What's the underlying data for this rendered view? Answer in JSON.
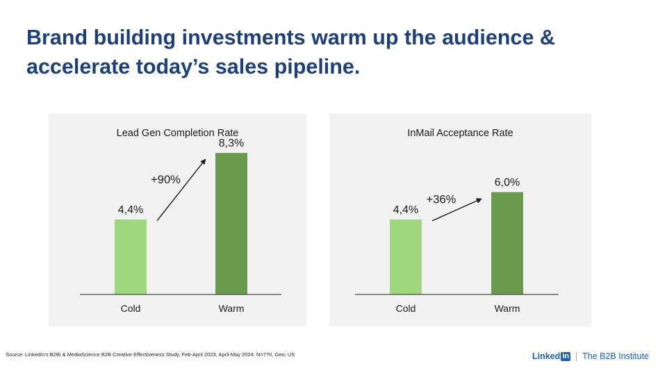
{
  "headline": "Brand building investments warm up the audience & accelerate today’s sales pipeline.",
  "source": "Source: LinkedIn’s B2Bi & MediaScience B2B Creative Effectiveness Study, Feb-April 2023, April-May 2024, N=770, Geo: US",
  "branding": {
    "linked_text": "Linked",
    "in_text": "in",
    "institute": "The B2B Institute"
  },
  "colors": {
    "headline": "#1d3f7a",
    "cold_bar": "#9fd77e",
    "warm_bar": "#6a9a4b",
    "panel_bg": "#f2f2f2"
  },
  "chart_data": [
    {
      "type": "bar",
      "title": "Lead Gen Completion Rate",
      "categories": [
        "Cold",
        "Warm"
      ],
      "values": [
        4.4,
        8.3
      ],
      "value_labels": [
        "4,4%",
        "8,3%"
      ],
      "annotation": "+90%",
      "xlabel": "",
      "ylabel": "",
      "ylim": [
        0,
        9
      ],
      "grid": false
    },
    {
      "type": "bar",
      "title": "InMail Acceptance Rate",
      "categories": [
        "Cold",
        "Warm"
      ],
      "values": [
        4.4,
        6.0
      ],
      "value_labels": [
        "4,4%",
        "6,0%"
      ],
      "annotation": "+36%",
      "xlabel": "",
      "ylabel": "",
      "ylim": [
        0,
        9
      ],
      "grid": false
    }
  ]
}
